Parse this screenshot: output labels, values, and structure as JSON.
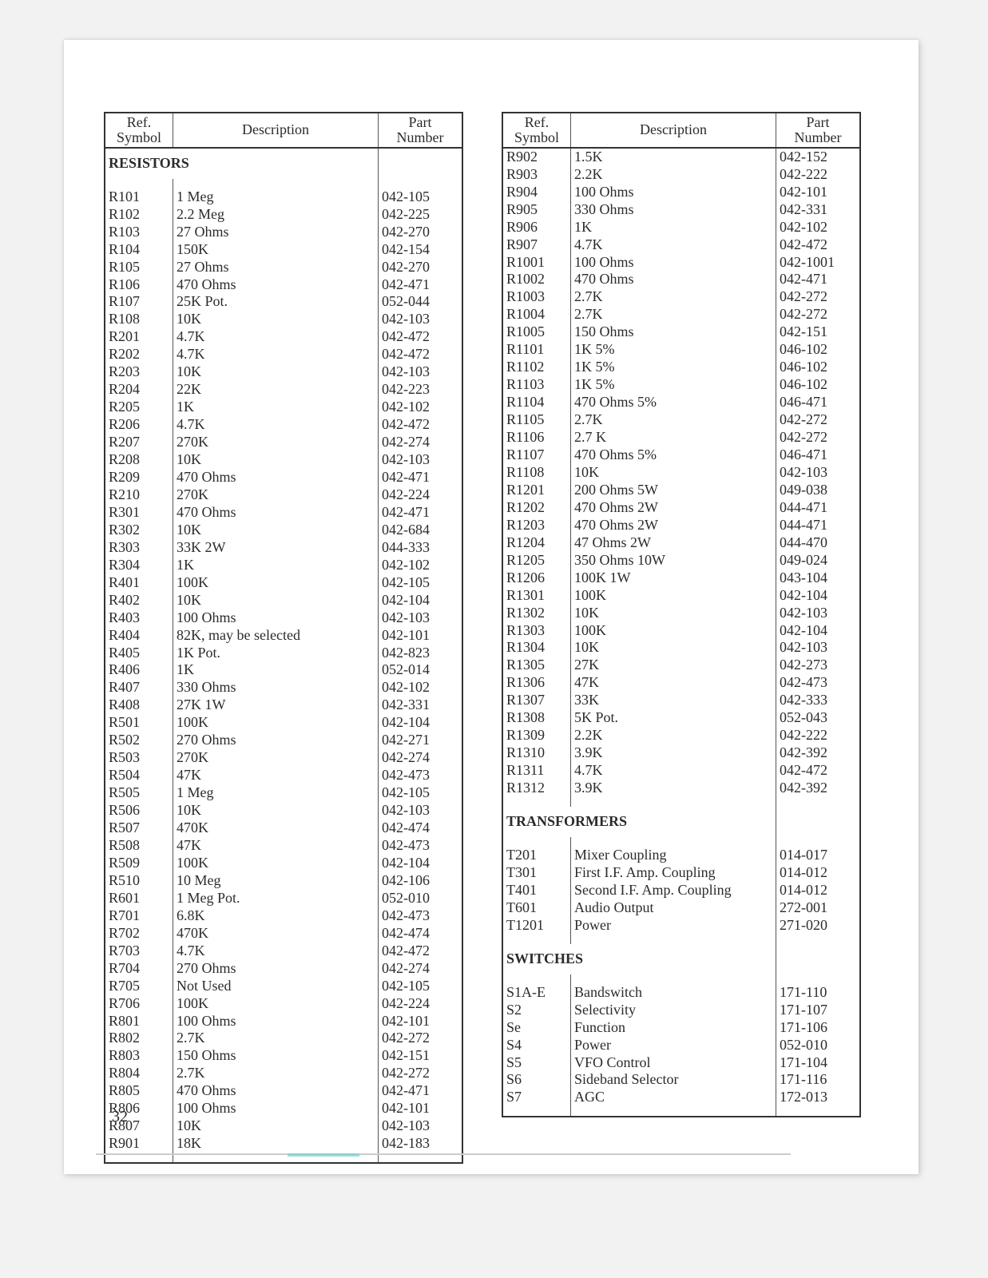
{
  "page_number": "32",
  "headers": {
    "symbol_top": "Ref.",
    "symbol_bot": "Symbol",
    "description": "Description",
    "part_top": "Part",
    "part_bot": "Number"
  },
  "left": {
    "sections": [
      {
        "title": "RESISTORS",
        "rows": [
          {
            "s": "R101",
            "d": "1 Meg",
            "p": "042-105"
          },
          {
            "s": "R102",
            "d": "2.2 Meg",
            "p": "042-225"
          },
          {
            "s": "R103",
            "d": "27 Ohms",
            "p": "042-270"
          },
          {
            "s": "R104",
            "d": "150K",
            "p": "042-154"
          },
          {
            "s": "R105",
            "d": "27 Ohms",
            "p": "042-270"
          },
          {
            "s": "R106",
            "d": "470 Ohms",
            "p": "042-471"
          },
          {
            "s": "R107",
            "d": "25K Pot.",
            "p": "052-044"
          },
          {
            "s": "R108",
            "d": "10K",
            "p": "042-103"
          },
          {
            "s": "R201",
            "d": "4.7K",
            "p": "042-472"
          },
          {
            "s": "R202",
            "d": "4.7K",
            "p": "042-472"
          },
          {
            "s": "R203",
            "d": "10K",
            "p": "042-103"
          },
          {
            "s": "R204",
            "d": "22K",
            "p": "042-223"
          },
          {
            "s": "R205",
            "d": "1K",
            "p": "042-102"
          },
          {
            "s": "R206",
            "d": "4.7K",
            "p": "042-472"
          },
          {
            "s": "R207",
            "d": "270K",
            "p": "042-274"
          },
          {
            "s": "R208",
            "d": "10K",
            "p": "042-103"
          },
          {
            "s": "R209",
            "d": "470 Ohms",
            "p": "042-471"
          },
          {
            "s": "R210",
            "d": "270K",
            "p": "042-224"
          },
          {
            "s": "R301",
            "d": "470 Ohms",
            "p": "042-471"
          },
          {
            "s": "R302",
            "d": "10K",
            "p": "042-684"
          },
          {
            "s": "R303",
            "d": "33K 2W",
            "p": "044-333"
          },
          {
            "s": "R304",
            "d": "1K",
            "p": "042-102"
          },
          {
            "s": "R401",
            "d": "100K",
            "p": "042-105"
          },
          {
            "s": "R402",
            "d": "10K",
            "p": "042-104"
          },
          {
            "s": "R403",
            "d": "100 Ohms",
            "p": "042-103"
          },
          {
            "s": "R404",
            "d": "82K, may be selected",
            "p": "042-101"
          },
          {
            "s": "R405",
            "d": "1K Pot.",
            "p": "042-823"
          },
          {
            "s": "R406",
            "d": "1K",
            "p": "052-014"
          },
          {
            "s": "R407",
            "d": "330 Ohms",
            "p": "042-102"
          },
          {
            "s": "R408",
            "d": "27K 1W",
            "p": "042-331"
          },
          {
            "s": "R501",
            "d": "100K",
            "p": "042-104"
          },
          {
            "s": "R502",
            "d": "270 Ohms",
            "p": "042-271"
          },
          {
            "s": "R503",
            "d": "270K",
            "p": "042-274"
          },
          {
            "s": "R504",
            "d": "47K",
            "p": "042-473"
          },
          {
            "s": "R505",
            "d": "1 Meg",
            "p": "042-105"
          },
          {
            "s": "R506",
            "d": "10K",
            "p": "042-103"
          },
          {
            "s": "R507",
            "d": "470K",
            "p": "042-474"
          },
          {
            "s": "R508",
            "d": "47K",
            "p": "042-473"
          },
          {
            "s": "R509",
            "d": "100K",
            "p": "042-104"
          },
          {
            "s": "R510",
            "d": "10 Meg",
            "p": "042-106"
          },
          {
            "s": "R601",
            "d": "1 Meg Pot.",
            "p": "052-010"
          },
          {
            "s": "R701",
            "d": "6.8K",
            "p": "042-473"
          },
          {
            "s": "R702",
            "d": "470K",
            "p": "042-474"
          },
          {
            "s": "R703",
            "d": "4.7K",
            "p": "042-472"
          },
          {
            "s": "R704",
            "d": "270 Ohms",
            "p": "042-274"
          },
          {
            "s": "R705",
            "d": "Not Used",
            "p": "042-105"
          },
          {
            "s": "R706",
            "d": "100K",
            "p": "042-224"
          },
          {
            "s": "R801",
            "d": "100 Ohms",
            "p": "042-101"
          },
          {
            "s": "R802",
            "d": "2.7K",
            "p": "042-272"
          },
          {
            "s": "R803",
            "d": "150 Ohms",
            "p": "042-151"
          },
          {
            "s": "R804",
            "d": "2.7K",
            "p": "042-272"
          },
          {
            "s": "R805",
            "d": "470 Ohms",
            "p": "042-471"
          },
          {
            "s": "R806",
            "d": "100 Ohms",
            "p": "042-101"
          },
          {
            "s": "R807",
            "d": "10K",
            "p": "042-103"
          },
          {
            "s": "R901",
            "d": "18K",
            "p": "042-183"
          }
        ]
      }
    ]
  },
  "right": {
    "sections": [
      {
        "title": null,
        "rows": [
          {
            "s": "R902",
            "d": "1.5K",
            "p": "042-152"
          },
          {
            "s": "R903",
            "d": "2.2K",
            "p": "042-222"
          },
          {
            "s": "R904",
            "d": "100 Ohms",
            "p": "042-101"
          },
          {
            "s": "R905",
            "d": "330 Ohms",
            "p": "042-331"
          },
          {
            "s": "R906",
            "d": "1K",
            "p": "042-102"
          },
          {
            "s": "R907",
            "d": "4.7K",
            "p": "042-472"
          },
          {
            "s": "R1001",
            "d": "100 Ohms",
            "p": "042-1001"
          },
          {
            "s": "R1002",
            "d": "470 Ohms",
            "p": "042-471"
          },
          {
            "s": "R1003",
            "d": "2.7K",
            "p": "042-272"
          },
          {
            "s": "R1004",
            "d": "2.7K",
            "p": "042-272"
          },
          {
            "s": "R1005",
            "d": "150 Ohms",
            "p": "042-151"
          },
          {
            "s": "R1101",
            "d": "1K 5%",
            "p": "046-102"
          },
          {
            "s": "R1102",
            "d": "1K 5%",
            "p": "046-102"
          },
          {
            "s": "R1103",
            "d": "1K 5%",
            "p": "046-102"
          },
          {
            "s": "R1104",
            "d": "470 Ohms 5%",
            "p": "046-471"
          },
          {
            "s": "R1105",
            "d": "2.7K",
            "p": "042-272"
          },
          {
            "s": "R1106",
            "d": "2.7 K",
            "p": "042-272"
          },
          {
            "s": "R1107",
            "d": "470 Ohms 5%",
            "p": "046-471"
          },
          {
            "s": "R1108",
            "d": "10K",
            "p": "042-103"
          },
          {
            "s": "R1201",
            "d": "200 Ohms 5W",
            "p": "049-038"
          },
          {
            "s": "R1202",
            "d": "470 Ohms 2W",
            "p": "044-471"
          },
          {
            "s": "R1203",
            "d": "470 Ohms 2W",
            "p": "044-471"
          },
          {
            "s": "R1204",
            "d": "47 Ohms 2W",
            "p": "044-470"
          },
          {
            "s": "R1205",
            "d": "350 Ohms 10W",
            "p": "049-024"
          },
          {
            "s": "R1206",
            "d": "100K 1W",
            "p": "043-104"
          },
          {
            "s": "R1301",
            "d": "100K",
            "p": "042-104"
          },
          {
            "s": "R1302",
            "d": "10K",
            "p": "042-103"
          },
          {
            "s": "R1303",
            "d": "100K",
            "p": "042-104"
          },
          {
            "s": "R1304",
            "d": "10K",
            "p": "042-103"
          },
          {
            "s": "R1305",
            "d": "27K",
            "p": "042-273"
          },
          {
            "s": "R1306",
            "d": "47K",
            "p": "042-473"
          },
          {
            "s": "R1307",
            "d": "33K",
            "p": "042-333"
          },
          {
            "s": "R1308",
            "d": "5K Pot.",
            "p": "052-043"
          },
          {
            "s": "R1309",
            "d": "2.2K",
            "p": "042-222"
          },
          {
            "s": "R1310",
            "d": "3.9K",
            "p": "042-392"
          },
          {
            "s": "R1311",
            "d": "4.7K",
            "p": "042-472"
          },
          {
            "s": "R1312",
            "d": "3.9K",
            "p": "042-392"
          }
        ]
      },
      {
        "title": "TRANSFORMERS",
        "rows": [
          {
            "s": "T201",
            "d": "Mixer Coupling",
            "p": "014-017"
          },
          {
            "s": "T301",
            "d": "First I.F. Amp. Coupling",
            "p": "014-012"
          },
          {
            "s": "T401",
            "d": "Second I.F. Amp. Coupling",
            "p": "014-012"
          },
          {
            "s": "T601",
            "d": "Audio Output",
            "p": "272-001"
          },
          {
            "s": "T1201",
            "d": "Power",
            "p": "271-020"
          }
        ]
      },
      {
        "title": "SWITCHES",
        "rows": [
          {
            "s": "S1A-E",
            "d": "Bandswitch",
            "p": "171-110"
          },
          {
            "s": "S2",
            "d": "Selectivity",
            "p": "171-107"
          },
          {
            "s": "Se",
            "d": "Function",
            "p": "171-106"
          },
          {
            "s": "S4",
            "d": "Power",
            "p": "052-010"
          },
          {
            "s": "S5",
            "d": "VFO Control",
            "p": "171-104"
          },
          {
            "s": "S6",
            "d": "Sideband Selector",
            "p": "171-116"
          },
          {
            "s": "S7",
            "d": "AGC",
            "p": "172-013"
          }
        ]
      }
    ]
  }
}
